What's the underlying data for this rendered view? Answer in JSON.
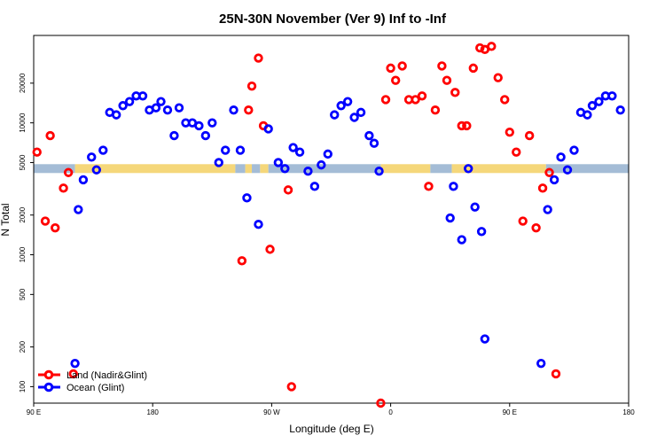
{
  "chart_data": {
    "type": "scatter",
    "title": "25N-30N November (Ver 9)   Inf to -Inf",
    "xlabel": "Longitude (deg E)",
    "ylabel": "N Total",
    "xlim": [
      90,
      450
    ],
    "ylim_log": [
      75,
      46000
    ],
    "y_scale": "log",
    "x_ticks": [
      {
        "value": 90,
        "label": "90 E"
      },
      {
        "value": 162,
        "label": "180"
      },
      {
        "value": 234,
        "label": "90 W"
      },
      {
        "value": 306,
        "label": "0"
      },
      {
        "value": 378,
        "label": "90 E"
      },
      {
        "value": 450,
        "label": "180"
      }
    ],
    "y_ticks": [
      {
        "value": 100,
        "label": "100"
      },
      {
        "value": 200,
        "label": "200"
      },
      {
        "value": 500,
        "label": "500"
      },
      {
        "value": 1000,
        "label": "1000"
      },
      {
        "value": 2000,
        "label": "2000"
      },
      {
        "value": 5000,
        "label": "5000"
      },
      {
        "value": 10000,
        "label": "10000"
      },
      {
        "value": 20000,
        "label": "20000"
      }
    ],
    "band": {
      "y": 4500,
      "land_color": "#f5d77a",
      "ocean_color": "#a4bcd6"
    },
    "band_segments": [
      {
        "type": "ocean",
        "from": 90,
        "to": 115
      },
      {
        "type": "land",
        "from": 115,
        "to": 212
      },
      {
        "type": "ocean",
        "from": 212,
        "to": 218
      },
      {
        "type": "land",
        "from": 218,
        "to": 222
      },
      {
        "type": "ocean",
        "from": 222,
        "to": 227
      },
      {
        "type": "land",
        "from": 227,
        "to": 232
      },
      {
        "type": "ocean",
        "from": 232,
        "to": 300
      },
      {
        "type": "land",
        "from": 300,
        "to": 330
      },
      {
        "type": "ocean",
        "from": 330,
        "to": 343
      },
      {
        "type": "land",
        "from": 343,
        "to": 400
      },
      {
        "type": "ocean",
        "from": 400,
        "to": 450
      }
    ],
    "legend": {
      "position": "bottom-left"
    },
    "series": [
      {
        "name": "Land (Nadir&Glint)",
        "color": "#ff0000",
        "points": [
          [
            92,
            6000
          ],
          [
            97,
            1800
          ],
          [
            100,
            8000
          ],
          [
            103,
            1600
          ],
          [
            108,
            3200
          ],
          [
            111,
            4200
          ],
          [
            114,
            125
          ],
          [
            216,
            900
          ],
          [
            220,
            12500
          ],
          [
            222,
            19000
          ],
          [
            226,
            31000
          ],
          [
            229,
            9500
          ],
          [
            233,
            1100
          ],
          [
            244,
            3100
          ],
          [
            246,
            100
          ],
          [
            300,
            75
          ],
          [
            303,
            15000
          ],
          [
            306,
            26000
          ],
          [
            309,
            21000
          ],
          [
            313,
            27000
          ],
          [
            317,
            15000
          ],
          [
            321,
            15000
          ],
          [
            325,
            16000
          ],
          [
            329,
            3300
          ],
          [
            333,
            12500
          ],
          [
            337,
            27000
          ],
          [
            340,
            21000
          ],
          [
            345,
            17000
          ],
          [
            349,
            9500
          ],
          [
            352,
            9500
          ],
          [
            356,
            26000
          ],
          [
            360,
            37000
          ],
          [
            363,
            36000
          ],
          [
            367,
            38000
          ],
          [
            371,
            22000
          ],
          [
            375,
            15000
          ],
          [
            378,
            8500
          ],
          [
            382,
            6000
          ],
          [
            386,
            1800
          ],
          [
            390,
            8000
          ],
          [
            394,
            1600
          ],
          [
            398,
            3200
          ],
          [
            402,
            4200
          ],
          [
            406,
            125
          ]
        ]
      },
      {
        "name": "Ocean (Glint)",
        "color": "#0000ff",
        "points": [
          [
            115,
            150
          ],
          [
            117,
            2200
          ],
          [
            120,
            3700
          ],
          [
            125,
            5500
          ],
          [
            128,
            4400
          ],
          [
            132,
            6200
          ],
          [
            136,
            12000
          ],
          [
            140,
            11500
          ],
          [
            144,
            13500
          ],
          [
            148,
            14500
          ],
          [
            152,
            16000
          ],
          [
            156,
            16000
          ],
          [
            160,
            12500
          ],
          [
            164,
            13000
          ],
          [
            167,
            14500
          ],
          [
            171,
            12500
          ],
          [
            175,
            8000
          ],
          [
            178,
            13000
          ],
          [
            182,
            10000
          ],
          [
            186,
            10000
          ],
          [
            190,
            9500
          ],
          [
            194,
            8000
          ],
          [
            198,
            10000
          ],
          [
            202,
            5000
          ],
          [
            206,
            6200
          ],
          [
            211,
            12500
          ],
          [
            215,
            6200
          ],
          [
            219,
            2700
          ],
          [
            226,
            1700
          ],
          [
            232,
            9000
          ],
          [
            238,
            5000
          ],
          [
            242,
            4500
          ],
          [
            247,
            6500
          ],
          [
            251,
            6000
          ],
          [
            256,
            4300
          ],
          [
            260,
            3300
          ],
          [
            264,
            4800
          ],
          [
            268,
            5800
          ],
          [
            272,
            11500
          ],
          [
            276,
            13500
          ],
          [
            280,
            14500
          ],
          [
            284,
            11000
          ],
          [
            288,
            12000
          ],
          [
            293,
            8000
          ],
          [
            296,
            7000
          ],
          [
            299,
            4300
          ],
          [
            342,
            1900
          ],
          [
            344,
            3300
          ],
          [
            349,
            1300
          ],
          [
            353,
            4500
          ],
          [
            357,
            2300
          ],
          [
            361,
            1500
          ],
          [
            363,
            230
          ],
          [
            397,
            150
          ],
          [
            401,
            2200
          ],
          [
            405,
            3700
          ],
          [
            409,
            5500
          ],
          [
            413,
            4400
          ],
          [
            417,
            6200
          ],
          [
            421,
            12000
          ],
          [
            425,
            11500
          ],
          [
            428,
            13500
          ],
          [
            432,
            14500
          ],
          [
            436,
            16000
          ],
          [
            440,
            16000
          ],
          [
            445,
            12500
          ]
        ]
      }
    ]
  }
}
